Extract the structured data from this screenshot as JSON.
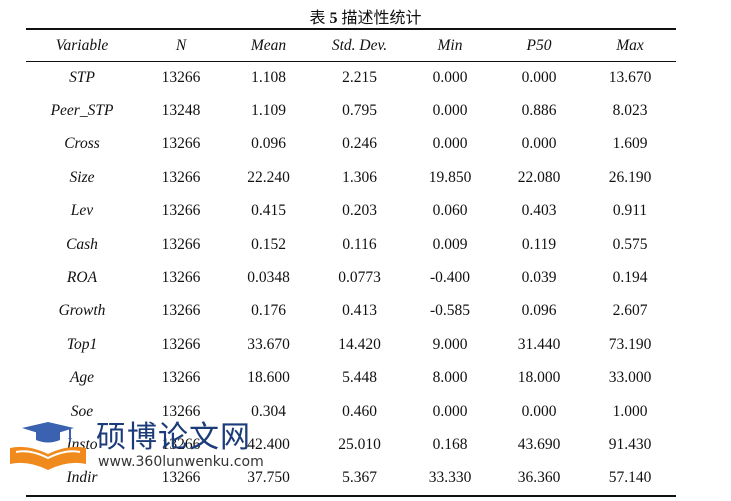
{
  "caption": {
    "prefix": "表 ",
    "number": "5",
    "title": " 描述性统计"
  },
  "table": {
    "headers": [
      "Variable",
      "N",
      "Mean",
      "Std. Dev.",
      "Min",
      "P50",
      "Max"
    ],
    "rows": [
      [
        "STP",
        "13266",
        "1.108",
        "2.215",
        "0.000",
        "0.000",
        "13.670"
      ],
      [
        "Peer_STP",
        "13248",
        "1.109",
        "0.795",
        "0.000",
        "0.886",
        "8.023"
      ],
      [
        "Cross",
        "13266",
        "0.096",
        "0.246",
        "0.000",
        "0.000",
        "1.609"
      ],
      [
        "Size",
        "13266",
        "22.240",
        "1.306",
        "19.850",
        "22.080",
        "26.190"
      ],
      [
        "Lev",
        "13266",
        "0.415",
        "0.203",
        "0.060",
        "0.403",
        "0.911"
      ],
      [
        "Cash",
        "13266",
        "0.152",
        "0.116",
        "0.009",
        "0.119",
        "0.575"
      ],
      [
        "ROA",
        "13266",
        "0.0348",
        "0.0773",
        "-0.400",
        "0.039",
        "0.194"
      ],
      [
        "Growth",
        "13266",
        "0.176",
        "0.413",
        "-0.585",
        "0.096",
        "2.607"
      ],
      [
        "Top1",
        "13266",
        "33.670",
        "14.420",
        "9.000",
        "31.440",
        "73.190"
      ],
      [
        "Age",
        "13266",
        "18.600",
        "5.448",
        "8.000",
        "18.000",
        "33.000"
      ],
      [
        "Soe",
        "13266",
        "0.304",
        "0.460",
        "0.000",
        "0.000",
        "1.000"
      ],
      [
        "Insto",
        "13266",
        "42.400",
        "25.010",
        "0.168",
        "43.690",
        "91.430"
      ],
      [
        "Indir",
        "13266",
        "37.750",
        "5.367",
        "33.330",
        "36.360",
        "57.140"
      ]
    ]
  },
  "watermark": {
    "site_name": "硕博论文网",
    "url": "www.360lunwenku.com"
  },
  "colors": {
    "watermark_blue": "#1b3b7a",
    "watermark_orange": "#f08a1c"
  }
}
